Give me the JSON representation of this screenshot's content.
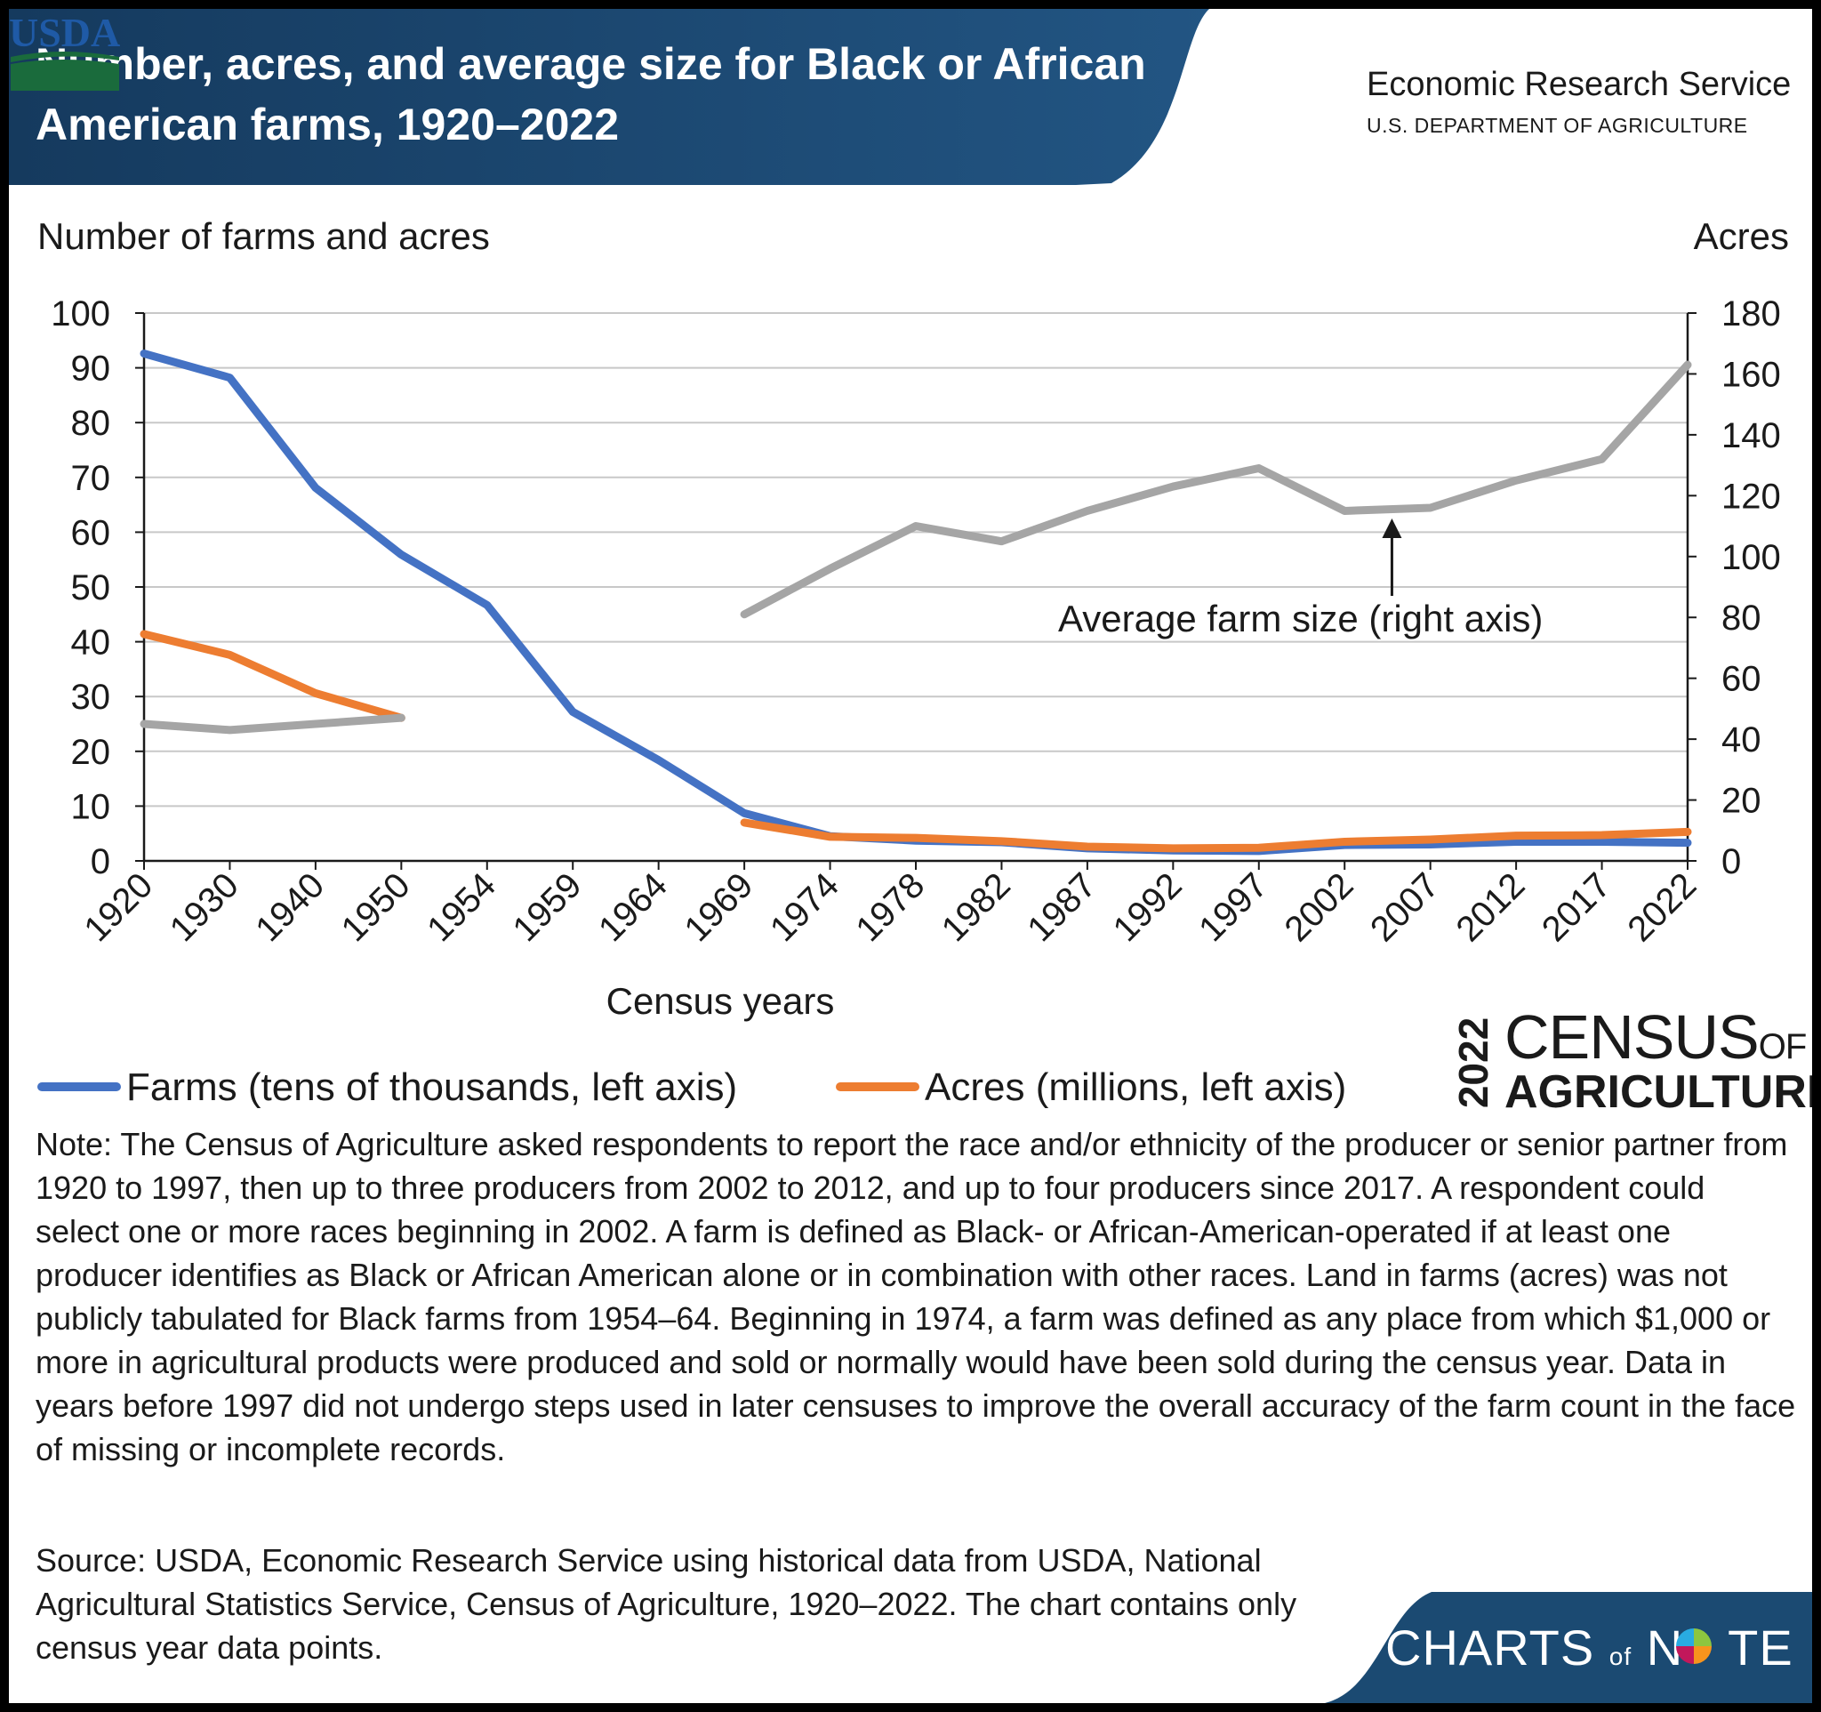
{
  "header": {
    "title": "Number, acres, and average size for Black or African American farms, 1920–2022",
    "agency_logo_text": "USDA",
    "agency_name": "Economic Research Service",
    "department": "U.S. DEPARTMENT OF AGRICULTURE"
  },
  "colors": {
    "header_blue": "#1b4a72",
    "farms": "#4472c4",
    "acres": "#ed7d31",
    "avg_size": "#a5a5a5",
    "usda_blue": "#1f5aa6",
    "usda_green": "#1a6b3c"
  },
  "chart_data": {
    "type": "line",
    "xlabel": "Census years",
    "ylabel": "Number of farms and acres",
    "ylabel_right": "Acres",
    "ylim": [
      0,
      100
    ],
    "ylim_right": [
      0,
      180
    ],
    "yticks": [
      0,
      10,
      20,
      30,
      40,
      50,
      60,
      70,
      80,
      90,
      100
    ],
    "yticks_right": [
      0,
      20,
      40,
      60,
      80,
      100,
      120,
      140,
      160,
      180
    ],
    "categories": [
      "1920",
      "1930",
      "1940",
      "1950",
      "1954",
      "1959",
      "1964",
      "1969",
      "1974",
      "1978",
      "1982",
      "1987",
      "1992",
      "1997",
      "2002",
      "2007",
      "2012",
      "2017",
      "2022"
    ],
    "grid": "horizontal",
    "legend_position": "bottom",
    "series": [
      {
        "name": "Farms (tens of thousands, left axis)",
        "axis": "left",
        "color": "#4472c4",
        "values": [
          92.6,
          88.2,
          68.1,
          55.9,
          46.7,
          27.2,
          18.4,
          8.7,
          4.5,
          3.7,
          3.4,
          2.3,
          1.9,
          1.8,
          2.9,
          3.0,
          3.5,
          3.5,
          3.3
        ]
      },
      {
        "name": "Acres (millions, left axis)",
        "axis": "left",
        "color": "#ed7d31",
        "values": [
          41.4,
          37.6,
          30.6,
          26.1,
          null,
          null,
          null,
          7.0,
          4.4,
          4.2,
          3.6,
          2.6,
          2.3,
          2.4,
          3.5,
          3.9,
          4.6,
          4.7,
          5.3
        ]
      },
      {
        "name": "Average farm size (right axis)",
        "axis": "right",
        "color": "#a5a5a5",
        "segments": [
          {
            "x": [
              "1920",
              "1930",
              "1940",
              "1950"
            ],
            "values": [
              45,
              43,
              45,
              47
            ]
          },
          {
            "x": [
              "1969",
              "1974",
              "1978",
              "1982",
              "1987",
              "1992",
              "1997",
              "2002",
              "2007",
              "2012",
              "2017",
              "2022"
            ],
            "values": [
              81,
              96,
              110,
              105,
              115,
              123,
              129,
              115,
              116,
              125,
              132,
              163
            ]
          }
        ]
      }
    ],
    "annotation": "Average farm size (right axis)"
  },
  "census_logo": {
    "year": "2022",
    "line1": "CENSUS",
    "line1_small": "OF",
    "line2": "AGRICULTURE"
  },
  "note": "Note: The Census of Agriculture asked respondents to report the race and/or ethnicity of the producer or senior partner from 1920 to 1997, then up to three producers from 2002 to 2012, and up to four producers since 2017. A respondent could select one or more races beginning in 2002. A farm is defined as Black- or African-American-operated if at least one producer identifies as Black or African American alone or in combination with other races. Land in farms (acres) was not publicly tabulated for Black farms from 1954–64. Beginning in 1974, a farm was defined as any place from which $1,000 or more in agricultural products were produced and sold or normally would have been sold during the census year. Data in years before 1997 did not undergo steps used in later censuses to improve the overall accuracy of the farm count in the face of missing or incomplete records.",
  "source": "Source: USDA, Economic Research Service using historical data from USDA, National Agricultural Statistics Service, Census of Agriculture, 1920–2022. The chart contains only census year data points.",
  "footer": {
    "brand_part1": "CHARTS",
    "brand_of": "of",
    "brand_part2": "N",
    "brand_part3": "TE"
  }
}
